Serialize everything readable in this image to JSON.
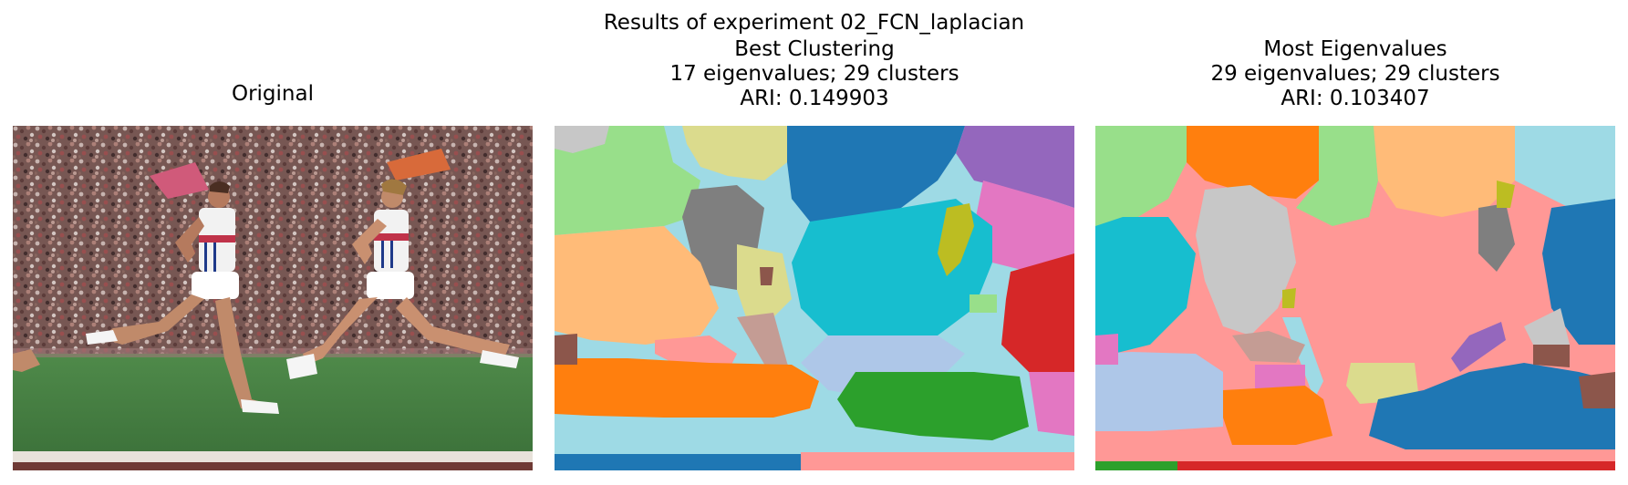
{
  "figure": {
    "suptitle": "Results of experiment 02_FCN_laplacian"
  },
  "panels": [
    {
      "title_lines": [
        "Original"
      ]
    },
    {
      "title_lines": [
        "Best Clustering",
        "17 eigenvalues; 29 clusters",
        "ARI: 0.149903"
      ]
    },
    {
      "title_lines": [
        "Most Eigenvalues",
        "29 eigenvalues; 29 clusters",
        "ARI: 0.103407"
      ]
    }
  ],
  "colors": {
    "tab_blue": "#1f77b4",
    "tab_orange": "#ff7f0e",
    "tab_green": "#2ca02c",
    "tab_red": "#d62728",
    "tab_purple": "#9467bd",
    "tab_brown": "#8c564b",
    "tab_pink": "#e377c2",
    "tab_gray": "#7f7f7f",
    "tab_olive": "#bcbd22",
    "tab_cyan": "#17becf",
    "light_blue": "#aec7e8",
    "light_orange": "#ffbb78",
    "light_green": "#98df8a",
    "light_red": "#ff9896",
    "light_gray": "#c7c7c7",
    "light_olive": "#dbdb8d",
    "light_cyan": "#9edae5",
    "light_brown": "#c49c94"
  }
}
